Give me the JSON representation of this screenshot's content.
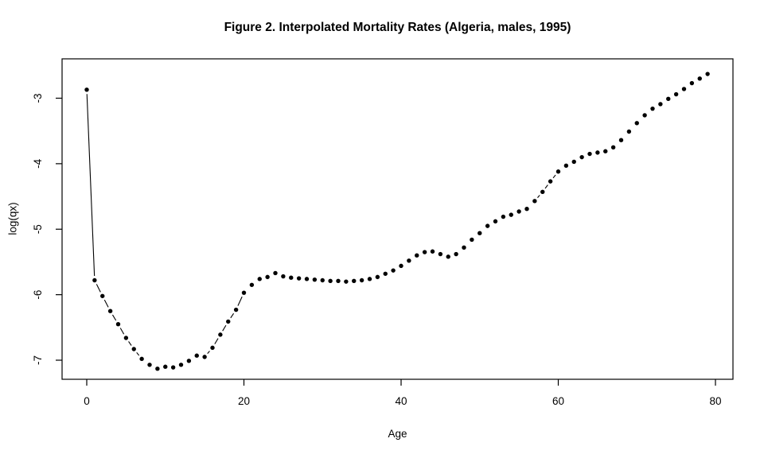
{
  "figure": {
    "title": "Figure 2. Interpolated Mortality Rates (Algeria, males, 1995)",
    "xlabel": "Age",
    "ylabel": "log(qx)"
  },
  "chart_data": {
    "type": "scatter",
    "style": "points-with-broken-line-segments (R plot type='b', pch filled dot)",
    "title": "Figure 2. Interpolated Mortality Rates (Algeria, males, 1995)",
    "xlabel": "Age",
    "ylabel": "log(qx)",
    "x_tick_values": [
      0,
      20,
      40,
      60,
      80
    ],
    "x_tick_labels": [
      "0",
      "20",
      "40",
      "60",
      "80"
    ],
    "y_tick_values": [
      -3,
      -4,
      -5,
      -6,
      -7
    ],
    "y_tick_labels": [
      "-3",
      "-4",
      "-5",
      "-6",
      "-7"
    ],
    "xlim": [
      0,
      80
    ],
    "ylim": [
      -7.13,
      -2.62
    ],
    "grid": false,
    "legend": null,
    "point_color": "#000000",
    "line_color": "#000000",
    "background": "#ffffff",
    "series": [
      {
        "name": "log(qx)",
        "x": [
          0,
          1,
          2,
          3,
          4,
          5,
          6,
          7,
          8,
          9,
          10,
          11,
          12,
          13,
          14,
          15,
          16,
          17,
          18,
          19,
          20,
          21,
          22,
          23,
          24,
          25,
          26,
          27,
          28,
          29,
          30,
          31,
          32,
          33,
          34,
          35,
          36,
          37,
          38,
          39,
          40,
          41,
          42,
          43,
          44,
          45,
          46,
          47,
          48,
          49,
          50,
          51,
          52,
          53,
          54,
          55,
          56,
          57,
          58,
          59,
          60,
          61,
          62,
          63,
          64,
          65,
          66,
          67,
          68,
          69,
          70,
          71,
          72,
          73,
          74,
          75,
          76,
          77,
          78,
          79
        ],
        "y": [
          -2.87,
          -5.78,
          -6.02,
          -6.25,
          -6.45,
          -6.66,
          -6.83,
          -6.98,
          -7.07,
          -7.13,
          -7.1,
          -7.11,
          -7.07,
          -7.01,
          -6.93,
          -6.95,
          -6.81,
          -6.61,
          -6.41,
          -6.23,
          -5.97,
          -5.85,
          -5.76,
          -5.73,
          -5.67,
          -5.72,
          -5.74,
          -5.75,
          -5.76,
          -5.77,
          -5.78,
          -5.79,
          -5.79,
          -5.8,
          -5.79,
          -5.78,
          -5.76,
          -5.73,
          -5.68,
          -5.63,
          -5.56,
          -5.48,
          -5.4,
          -5.35,
          -5.34,
          -5.38,
          -5.42,
          -5.38,
          -5.28,
          -5.16,
          -5.06,
          -4.95,
          -4.88,
          -4.81,
          -4.78,
          -4.73,
          -4.69,
          -4.57,
          -4.43,
          -4.27,
          -4.12,
          -4.03,
          -3.97,
          -3.9,
          -3.85,
          -3.83,
          -3.81,
          -3.75,
          -3.64,
          -3.51,
          -3.38,
          -3.26,
          -3.16,
          -3.09,
          -3.01,
          -2.94,
          -2.86,
          -2.77,
          -2.7,
          -2.63
        ]
      }
    ]
  }
}
